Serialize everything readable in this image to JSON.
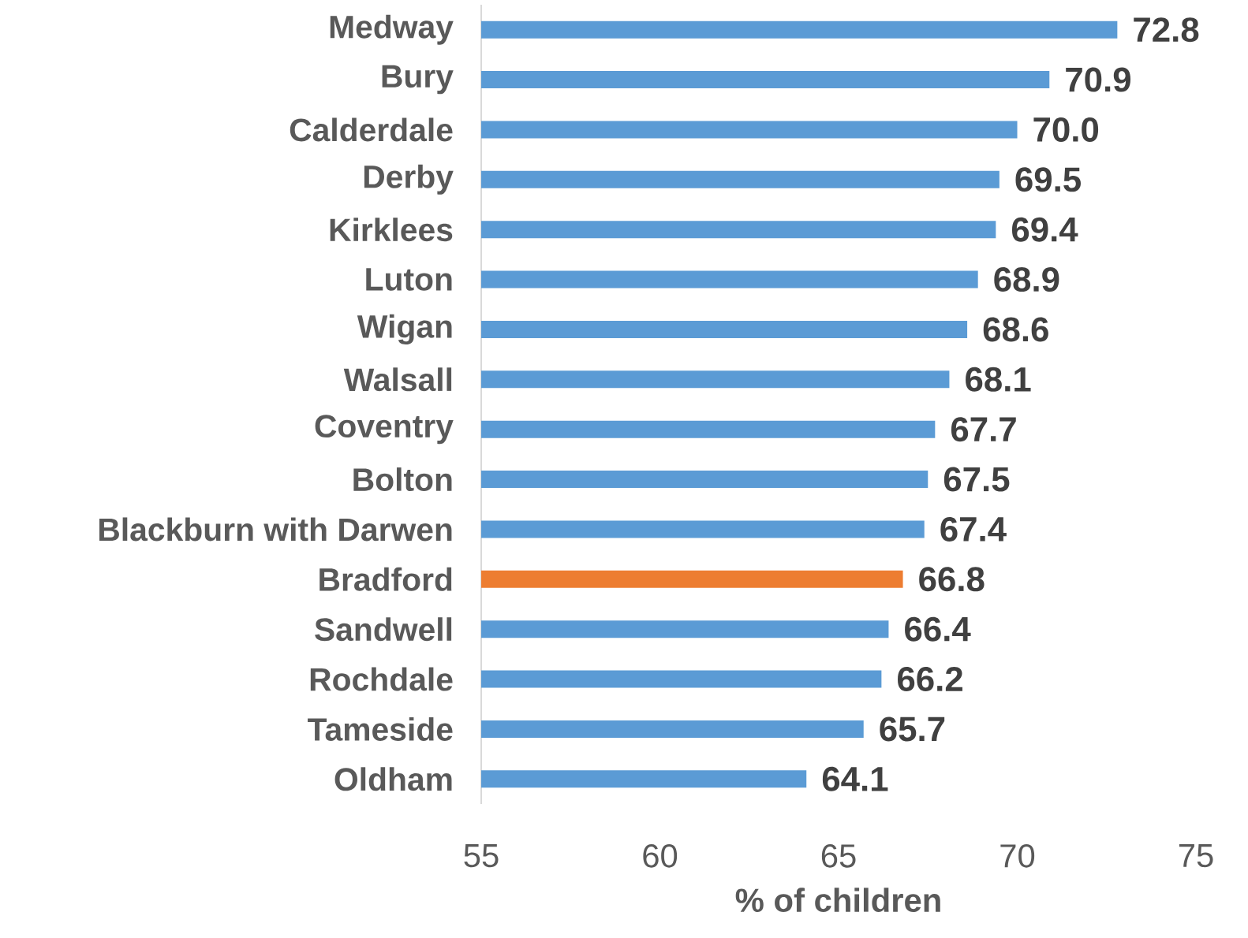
{
  "chart_data": {
    "type": "bar",
    "orientation": "horizontal",
    "categories": [
      "Medway",
      "Bury",
      "Calderdale",
      "Derby",
      "Kirklees",
      "Luton",
      "Wigan",
      "Walsall",
      "Coventry",
      "Bolton",
      "Blackburn with Darwen",
      "Bradford",
      "Sandwell",
      "Rochdale",
      "Tameside",
      "Oldham"
    ],
    "values": [
      72.8,
      70.9,
      70.0,
      69.5,
      69.4,
      68.9,
      68.6,
      68.1,
      67.7,
      67.5,
      67.4,
      66.8,
      66.4,
      66.2,
      65.7,
      64.1
    ],
    "value_labels": [
      "72.8",
      "70.9",
      "70.0",
      "69.5",
      "69.4",
      "68.9",
      "68.6",
      "68.1",
      "67.7",
      "67.5",
      "67.4",
      "66.8",
      "66.4",
      "66.2",
      "65.7",
      "64.1"
    ],
    "colors": [
      "#5b9bd5",
      "#5b9bd5",
      "#5b9bd5",
      "#5b9bd5",
      "#5b9bd5",
      "#5b9bd5",
      "#5b9bd5",
      "#5b9bd5",
      "#5b9bd5",
      "#5b9bd5",
      "#5b9bd5",
      "#ed7d31",
      "#5b9bd5",
      "#5b9bd5",
      "#5b9bd5",
      "#5b9bd5"
    ],
    "xlabel": "% of children",
    "xlim": [
      55,
      75
    ],
    "xticks": [
      55,
      60,
      65,
      70,
      75
    ]
  }
}
